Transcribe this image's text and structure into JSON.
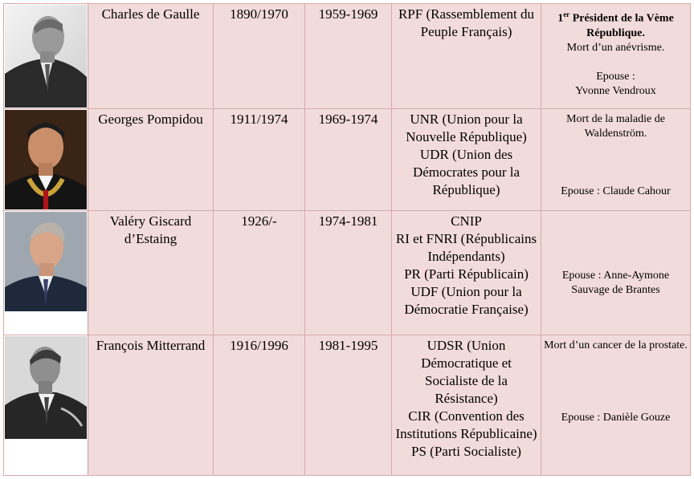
{
  "rows": [
    {
      "name": "Charles de Gaulle",
      "life": "1890/1970",
      "term": "1959-1969",
      "parties": [
        "RPF (Rassemblement du Peuple Français)"
      ],
      "notes": {
        "title_prefix": "1",
        "title_sup": "er",
        "title_rest": " Président de la Vème République.",
        "line1": "Mort d’un anévrisme.",
        "line2": "Epouse :",
        "line3": "Yvonne Vendroux"
      }
    },
    {
      "name": "Georges Pompidou",
      "life": "1911/1974",
      "term": "1969-1974",
      "parties": [
        "UNR (Union pour la Nouvelle République)",
        "UDR (Union des Démocrates pour la République)"
      ],
      "notes": {
        "line1": "Mort de la maladie de Waldenström.",
        "line2": "Epouse : Claude Cahour"
      }
    },
    {
      "name": "Valéry Giscard d’Estaing",
      "life": "1926/-",
      "term": "1974-1981",
      "parties": [
        "CNIP",
        "RI  et FNRI (Républicains Indépendants)",
        "PR (Parti Républicain)",
        "UDF (Union pour la Démocratie Française)"
      ],
      "notes": {
        "line1": "Epouse : Anne-Aymone Sauvage de Brantes"
      }
    },
    {
      "name": "François Mitterrand",
      "life": "1916/1996",
      "term": "1981-1995",
      "parties": [
        "UDSR (Union Démocratique et Socialiste de la Résistance)",
        "CIR (Convention des Institutions Républicaine)",
        "PS (Parti Socialiste)"
      ],
      "notes": {
        "line1": "Mort d’un cancer de la prostate.",
        "line2": "Epouse : Danièle Gouze"
      }
    }
  ],
  "colors": {
    "cell_bg": "#f2dcdb",
    "border": "#d6a9a9"
  },
  "icons": [
    "portrait-de-gaulle",
    "portrait-pompidou",
    "portrait-giscard",
    "portrait-mitterrand"
  ]
}
